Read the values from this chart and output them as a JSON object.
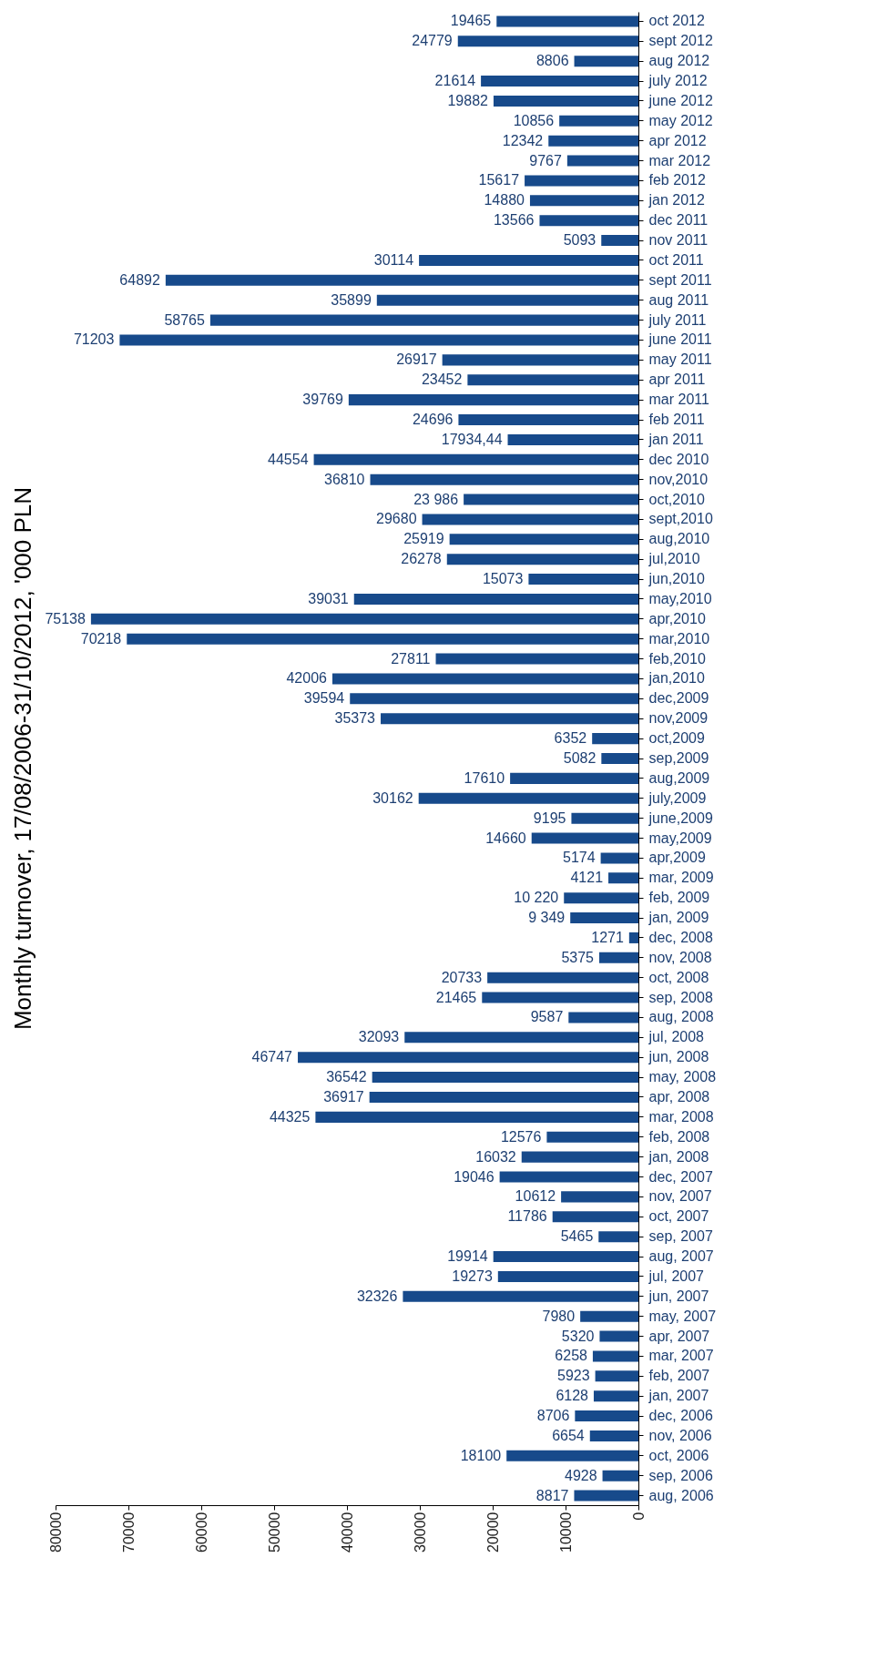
{
  "chart_data": {
    "type": "bar",
    "orientation": "horizontal",
    "title": "Monthly turnover, 17/08/2006-31/10/2012, '000 PLN",
    "categories": [
      "oct 2012",
      "sept 2012",
      "aug 2012",
      "july 2012",
      "june 2012",
      "may 2012",
      "apr 2012",
      "mar 2012",
      "feb 2012",
      "jan 2012",
      "dec 2011",
      "nov 2011",
      "oct 2011",
      "sept 2011",
      "aug 2011",
      "july 2011",
      "june 2011",
      "may 2011",
      "apr 2011",
      "mar 2011",
      "feb 2011",
      "jan 2011",
      "dec 2010",
      "nov,2010",
      "oct,2010",
      "sept,2010",
      "aug,2010",
      "jul,2010",
      "jun,2010",
      "may,2010",
      "apr,2010",
      "mar,2010",
      "feb,2010",
      "jan,2010",
      "dec,2009",
      "nov,2009",
      "oct,2009",
      "sep,2009",
      "aug,2009",
      "july,2009",
      "june,2009",
      "may,2009",
      "apr,2009",
      "mar, 2009",
      "feb, 2009",
      "jan, 2009",
      "dec, 2008",
      "nov, 2008",
      "oct, 2008",
      "sep, 2008",
      "aug, 2008",
      "jul, 2008",
      "jun, 2008",
      "may, 2008",
      "apr, 2008",
      "mar, 2008",
      "feb, 2008",
      "jan, 2008",
      "dec, 2007",
      "nov, 2007",
      "oct, 2007",
      "sep, 2007",
      "aug, 2007",
      "jul, 2007",
      "jun, 2007",
      "may, 2007",
      "apr, 2007",
      "mar, 2007",
      "feb, 2007",
      "jan, 2007",
      "dec, 2006",
      "nov, 2006",
      "oct, 2006",
      "sep, 2006",
      "aug, 2006"
    ],
    "values": [
      19465,
      24779,
      8806,
      21614,
      19882,
      10856,
      12342,
      9767,
      15617,
      14880,
      13566,
      5093,
      30114,
      64892,
      35899,
      58765,
      71203,
      26917,
      23452,
      39769,
      24696,
      17934.44,
      44554,
      36810,
      23986,
      29680,
      25919,
      26278,
      15073,
      39031,
      75138,
      70218,
      27811,
      42006,
      39594,
      35373,
      6352,
      5082,
      17610,
      30162,
      9195,
      14660,
      5174,
      4121,
      10220,
      9349,
      1271,
      5375,
      20733,
      21465,
      9587,
      32093,
      46747,
      36542,
      36917,
      44325,
      12576,
      16032,
      19046,
      10612,
      11786,
      5465,
      19914,
      19273,
      32326,
      7980,
      5320,
      6258,
      5923,
      6128,
      8706,
      6654,
      18100,
      4928,
      8817
    ],
    "value_labels": [
      "19465",
      "24779",
      "8806",
      "21614",
      "19882",
      "10856",
      "12342",
      "9767",
      "15617",
      "14880",
      "13566",
      "5093",
      "30114",
      "64892",
      "35899",
      "58765",
      "71203",
      "26917",
      "23452",
      "39769",
      "24696",
      "17934,44",
      "44554",
      "36810",
      "23 986",
      "29680",
      "25919",
      "26278",
      "15073",
      "39031",
      "75138",
      "70218",
      "27811",
      "42006",
      "39594",
      "35373",
      "6352",
      "5082",
      "17610",
      "30162",
      "9195",
      "14660",
      "5174",
      "4121",
      "10 220",
      "9 349",
      "1271",
      "5375",
      "20733",
      "21465",
      "9587",
      "32093",
      "46747",
      "36542",
      "36917",
      "44325",
      "12576",
      "16032",
      "19046",
      "10612",
      "11786",
      "5465",
      "19914",
      "19273",
      "32326",
      "7980",
      "5320",
      "6258",
      "5923",
      "6128",
      "8706",
      "6654",
      "18100",
      "4928",
      "8817"
    ],
    "color": "#174a8b",
    "xlim": [
      80000,
      0
    ],
    "xticks": [
      0,
      10000,
      20000,
      30000,
      40000,
      50000,
      60000,
      70000,
      80000
    ]
  }
}
